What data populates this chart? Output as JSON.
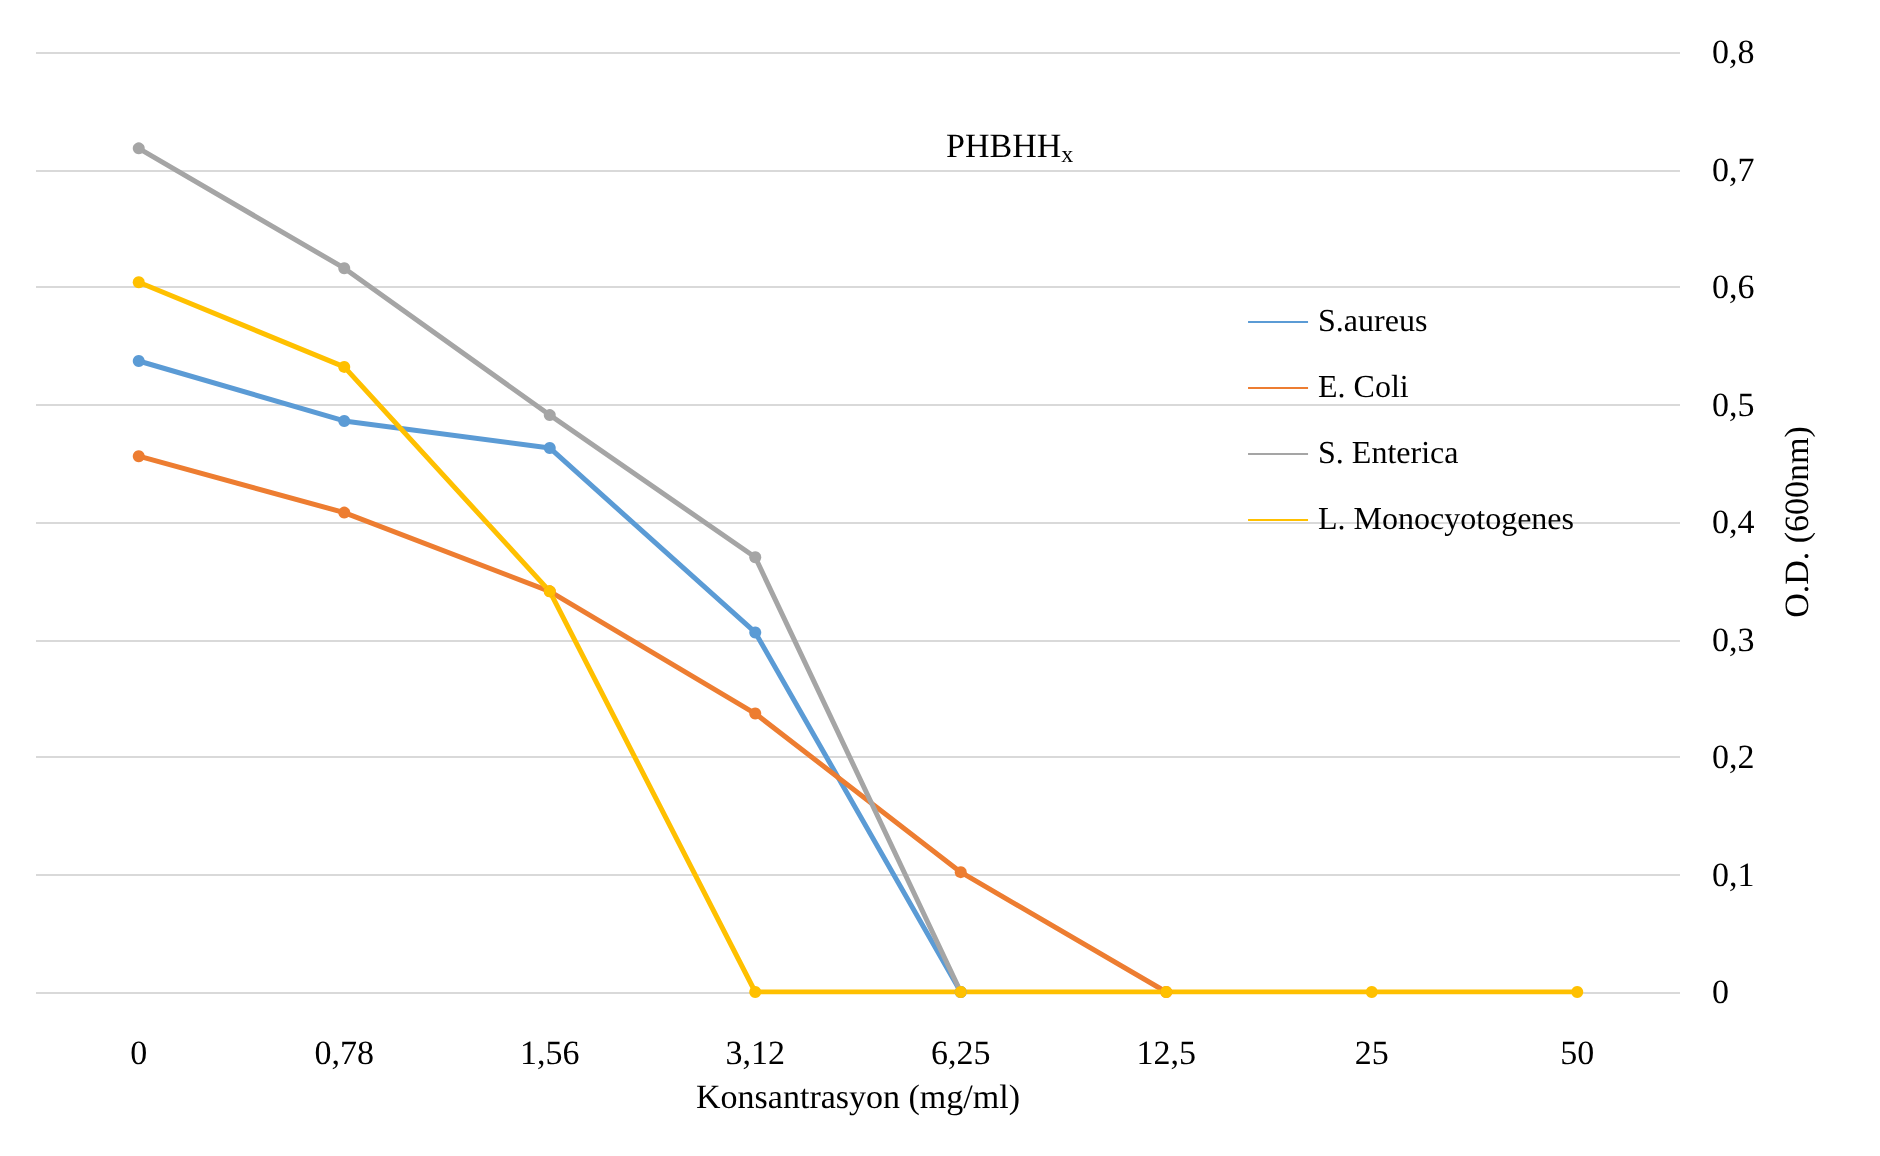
{
  "chart_data": {
    "type": "line",
    "title": "PHBHH$_{x}$",
    "xlabel": "Konsantrasyon (mg/ml)",
    "ylabel": "O.D. (600nm)",
    "categories": [
      "0",
      "0,78",
      "1,56",
      "3,12",
      "6,25",
      "12,5",
      "25",
      "50"
    ],
    "series": [
      {
        "name": "S.aureus",
        "color": "#5b9bd5",
        "values": [
          0.537,
          0.486,
          0.463,
          0.306,
          0,
          null,
          null,
          null
        ]
      },
      {
        "name": "E. Coli",
        "color": "#ed7d31",
        "values": [
          0.456,
          0.408,
          0.341,
          0.237,
          0.102,
          0,
          null,
          null
        ]
      },
      {
        "name": "S. Enterica",
        "color": "#a5a5a5",
        "values": [
          0.718,
          0.616,
          0.491,
          0.37,
          0,
          null,
          null,
          null
        ]
      },
      {
        "name": "L. Monocyotogenes",
        "color": "#ffc000",
        "values": [
          0.604,
          0.532,
          0.341,
          0,
          0,
          0,
          0,
          0
        ]
      }
    ],
    "ylim": [
      0,
      0.8
    ],
    "yticks": [
      {
        "value": 0,
        "label": "0"
      },
      {
        "value": 0.1,
        "label": "0,1"
      },
      {
        "value": 0.2,
        "label": "0,2"
      },
      {
        "value": 0.3,
        "label": "0,3"
      },
      {
        "value": 0.4,
        "label": "0,4"
      },
      {
        "value": 0.5,
        "label": "0,5"
      },
      {
        "value": 0.6,
        "label": "0,6"
      },
      {
        "value": 0.7,
        "label": "0,7"
      },
      {
        "value": 0.8,
        "label": "0,8"
      }
    ],
    "grid": "y",
    "legend": "right",
    "marker": "circle",
    "line_style": "solid"
  }
}
